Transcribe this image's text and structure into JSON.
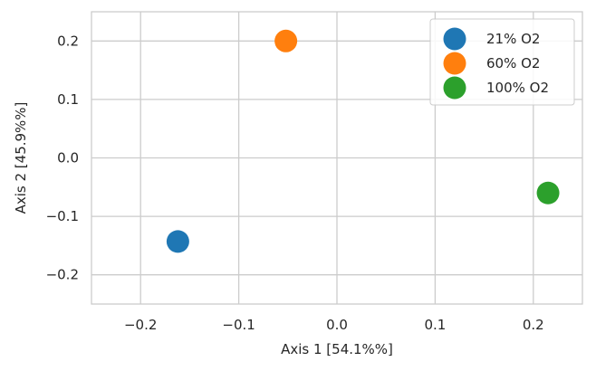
{
  "chart_data": {
    "type": "scatter",
    "title": "",
    "xlabel": "Axis 1 [54.1%%]",
    "ylabel": "Axis 2 [45.9%%]",
    "xlim": [
      -0.25,
      0.25
    ],
    "ylim": [
      -0.25,
      0.25
    ],
    "x_ticks": [
      -0.2,
      -0.1,
      0.0,
      0.1,
      0.2
    ],
    "x_tick_labels": [
      "−0.2",
      "−0.1",
      "0.0",
      "0.1",
      "0.2"
    ],
    "y_ticks": [
      -0.2,
      -0.1,
      0.0,
      0.1,
      0.2
    ],
    "y_tick_labels": [
      "−0.2",
      "−0.1",
      "0.0",
      "0.1",
      "0.2"
    ],
    "grid": true,
    "legend_position": "top-right",
    "series": [
      {
        "name": "21% O2",
        "color": "#1f77b4",
        "x": [
          -0.162
        ],
        "y": [
          -0.143
        ]
      },
      {
        "name": "60% O2",
        "color": "#ff7f0e",
        "x": [
          -0.052
        ],
        "y": [
          0.2
        ]
      },
      {
        "name": "100% O2",
        "color": "#2ca02c",
        "x": [
          0.215
        ],
        "y": [
          -0.06
        ]
      }
    ]
  }
}
